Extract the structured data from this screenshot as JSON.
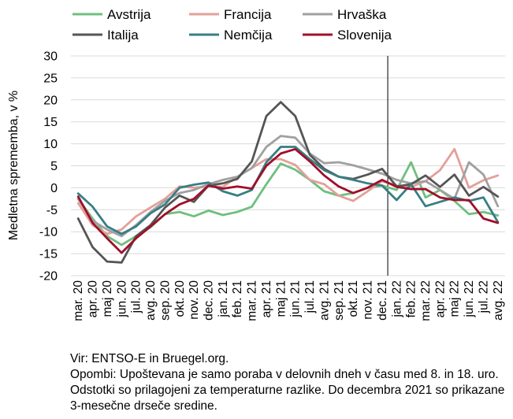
{
  "chart_data": {
    "type": "line",
    "title": "",
    "ylabel": "Medletna sprememba, v %",
    "xlabel": "",
    "ylim": [
      -20,
      30
    ],
    "yticks": [
      -20,
      -15,
      -10,
      -5,
      0,
      5,
      10,
      15,
      20,
      25,
      30
    ],
    "grid": "horizontal",
    "legend_position": "top",
    "categories": [
      "mar. 20",
      "apr. 20",
      "maj 20",
      "jun. 20",
      "jul. 20",
      "avg. 20",
      "sep. 20",
      "okt. 20",
      "nov. 20",
      "dec. 20",
      "jan. 21",
      "feb. 21",
      "mar. 21",
      "apr. 21",
      "maj 21",
      "jun. 21",
      "jul. 21",
      "avg. 21",
      "sep. 21",
      "okt. 21",
      "nov. 21",
      "dec. 21",
      "jan. 22",
      "feb. 22",
      "mar. 22",
      "apr. 22",
      "maj 22",
      "jun. 22",
      "jul. 22",
      "avg. 22"
    ],
    "vline_after_category": "dec. 21",
    "series": [
      {
        "name": "Avstrija",
        "color": "#6fbf7f",
        "values": [
          -2.5,
          -7,
          -11,
          -13,
          -11,
          -9,
          -6,
          -5.5,
          -6.5,
          -5.2,
          -6.2,
          -5.5,
          -4.3,
          0.8,
          5.5,
          4.1,
          1.8,
          -0.8,
          -1.8,
          -1.2,
          0,
          0.5,
          -0.5,
          5.8,
          -2.2,
          -0.5,
          -3,
          -6,
          -5.5,
          -6.3
        ]
      },
      {
        "name": "Francija",
        "color": "#e3a09a",
        "values": [
          -3.5,
          -8.5,
          -10.5,
          -9.5,
          -6.5,
          -4.5,
          -2.5,
          0.3,
          0,
          0.3,
          0.2,
          2.5,
          4.5,
          6.5,
          6.5,
          5.2,
          1.8,
          0.8,
          -1.8,
          -3,
          -0.8,
          1.5,
          0.5,
          0.2,
          1.5,
          4,
          8.8,
          0,
          1.7,
          2.8
        ]
      },
      {
        "name": "Hrvaška",
        "color": "#a0a0a0",
        "values": [
          -2.5,
          -7.5,
          -9.5,
          -11,
          -8.5,
          -5.5,
          -3,
          -1.2,
          -0.5,
          0.8,
          1.8,
          2.5,
          4.5,
          9.3,
          11.8,
          11.4,
          7.8,
          5.6,
          5.8,
          5.1,
          4.2,
          3.2,
          1.8,
          1,
          1.5,
          -0.5,
          -2.5,
          5.8,
          3,
          -4.2
        ]
      },
      {
        "name": "Italija",
        "color": "#555555",
        "values": [
          -7,
          -13.5,
          -16.8,
          -17,
          -11,
          -8.5,
          -4.5,
          -1.8,
          -3.2,
          0.5,
          1,
          2,
          6,
          16.3,
          19.5,
          16.3,
          7.5,
          4.3,
          2.5,
          2,
          3,
          4.3,
          0.3,
          0.8,
          2.8,
          0.2,
          3,
          -1.8,
          0.2,
          -2
        ]
      },
      {
        "name": "Nemčija",
        "color": "#367f85",
        "values": [
          -1.3,
          -4.3,
          -8.8,
          -10.5,
          -8.8,
          -5.8,
          -3.8,
          0,
          0.7,
          1.2,
          -0.8,
          -1.8,
          -0.5,
          5.8,
          9.3,
          9.3,
          6.5,
          4,
          2.5,
          1.8,
          1,
          0.5,
          -2.8,
          0.8,
          -4.2,
          -3.2,
          -2.2,
          -3,
          -2.2,
          -7.8
        ]
      },
      {
        "name": "Slovenija",
        "color": "#a10f2a",
        "values": [
          -2,
          -8,
          -11.5,
          -14.8,
          -11.5,
          -8.8,
          -6,
          -3.8,
          -2.5,
          0.5,
          -0.2,
          0.3,
          -0.2,
          5,
          7.8,
          8.8,
          6,
          2.8,
          0.3,
          -1.2,
          0,
          1.8,
          0.2,
          -0.3,
          -0.3,
          -2.2,
          -2.8,
          -2.8,
          -7,
          -8
        ]
      }
    ]
  },
  "source": "Vir: ENTSO-E in Bruegel.org.",
  "notes": "Opombi: Upoštevana je samo poraba v delovnih dneh v času med 8. in 18. uro. Odstotki so prilagojeni za temperaturne razlike. Do decembra 2021 so prikazane 3-mesečne drseče sredine."
}
